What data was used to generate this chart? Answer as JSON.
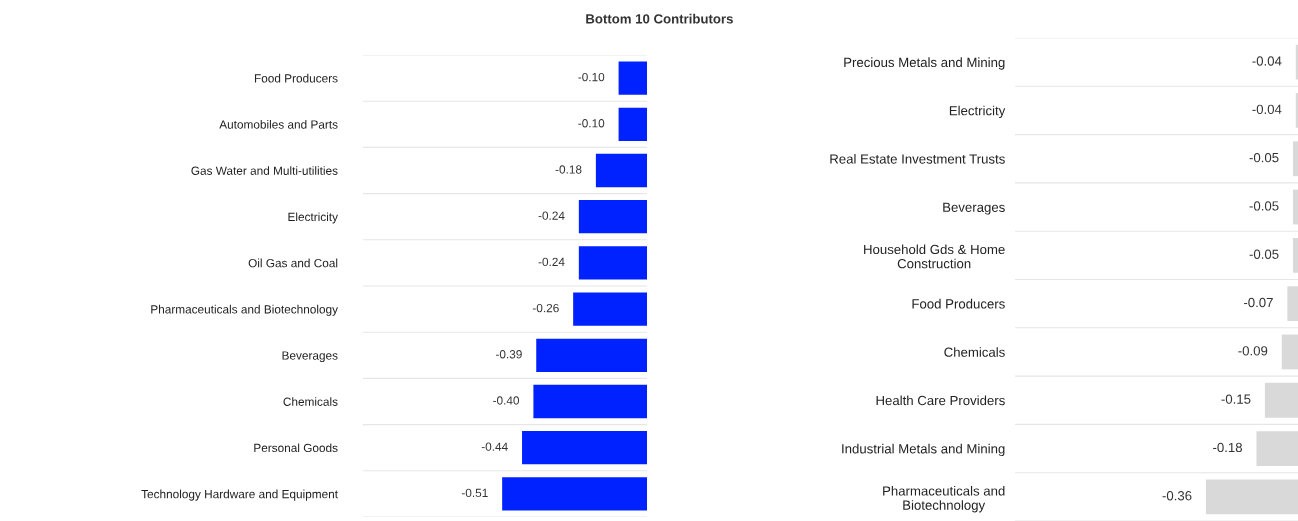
{
  "chart_data": [
    {
      "type": "bar",
      "orientation": "horizontal",
      "title": "Bottom 10 Contributors",
      "categories": [
        "Food Producers",
        "Automobiles and Parts",
        "Gas Water and Multi-utilities",
        "Electricity",
        "Oil Gas and Coal",
        "Pharmaceuticals and Biotechnology",
        "Beverages",
        "Chemicals",
        "Personal Goods",
        "Technology Hardware and Equipment"
      ],
      "values": [
        -0.1,
        -0.1,
        -0.18,
        -0.24,
        -0.24,
        -0.26,
        -0.39,
        -0.4,
        -0.44,
        -0.51
      ],
      "value_labels": [
        "-0.10",
        "-0.10",
        "-0.18",
        "-0.24",
        "-0.24",
        "-0.26",
        "-0.39",
        "-0.40",
        "-0.44",
        "-0.51"
      ],
      "color": "#0022ff",
      "xlim": [
        -1.0,
        0
      ],
      "grid": "y",
      "tick_labels": "y"
    },
    {
      "type": "bar",
      "orientation": "horizontal",
      "categories": [
        "Precious Metals and Mining",
        "Electricity",
        "Real Estate Investment Trusts",
        "Beverages",
        "Household Gds & Home\nConstruction",
        "Food Producers",
        "Chemicals",
        "Health Care Providers",
        "Industrial Metals and Mining",
        "Pharmaceuticals and\nBiotechnology"
      ],
      "values": [
        -0.04,
        -0.04,
        -0.05,
        -0.05,
        -0.05,
        -0.07,
        -0.09,
        -0.15,
        -0.18,
        -0.36
      ],
      "value_labels": [
        "-0.04",
        "-0.04",
        "-0.05",
        "-0.05",
        "-0.05",
        "-0.07",
        "-0.09",
        "-0.15",
        "-0.18",
        "-0.36"
      ],
      "color": "#d9d9d9",
      "xlim": [
        -1.04,
        0
      ],
      "grid": "y",
      "tick_labels": "y"
    }
  ]
}
